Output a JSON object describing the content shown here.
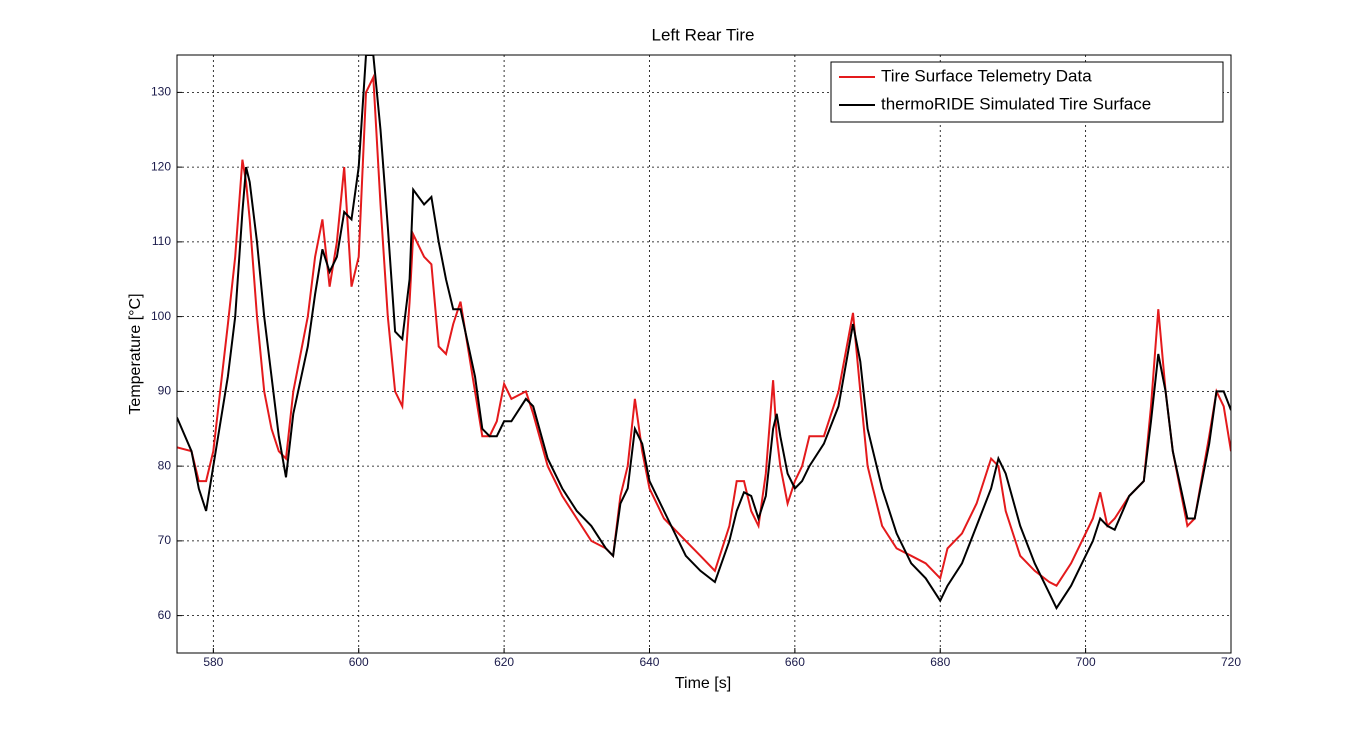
{
  "chart_data": {
    "type": "line",
    "title": "Left Rear Tire",
    "xlabel": "Time [s]",
    "ylabel": "Temperature [°C]",
    "x": [
      575,
      577,
      578,
      579,
      580,
      582,
      583,
      584,
      584.5,
      585,
      586,
      587,
      588,
      589,
      590,
      591,
      593,
      594,
      595,
      596,
      597,
      598,
      599,
      600,
      601,
      602,
      603,
      604,
      605,
      606,
      607,
      607.5,
      609,
      610,
      611,
      612,
      613,
      614,
      616,
      617,
      618,
      619,
      620,
      621,
      623,
      624,
      626,
      628,
      630,
      632,
      634,
      635,
      636,
      637,
      638,
      639,
      640,
      642,
      645,
      647,
      649,
      651,
      652,
      653,
      654,
      655,
      656,
      657,
      657.5,
      658,
      659,
      660,
      661,
      662,
      664,
      666,
      668,
      669,
      670,
      672,
      674,
      676,
      678,
      680,
      681,
      683,
      685,
      687,
      688,
      689,
      691,
      693,
      695,
      696,
      698,
      700,
      701,
      702,
      703,
      704,
      706,
      708,
      709,
      710,
      711,
      712,
      714,
      715,
      717,
      718,
      719,
      720
    ],
    "series": [
      {
        "name": "Tire Surface Telemetry Data",
        "color": "#e41a1c",
        "values": [
          82.5,
          82,
          78,
          78,
          82,
          99,
          108,
          121,
          118,
          113,
          100,
          90,
          85,
          82,
          81,
          90,
          100,
          108,
          113,
          104,
          110,
          120,
          104,
          108,
          130,
          132,
          115,
          100,
          90,
          88,
          102,
          111,
          108,
          107,
          96,
          95,
          99,
          102,
          90,
          84,
          84,
          86,
          91,
          89,
          90,
          87,
          80,
          76,
          73,
          70,
          69,
          68,
          76,
          80,
          89,
          82,
          77,
          73,
          70,
          68,
          66,
          72,
          78,
          78,
          74,
          72,
          79,
          91.5,
          84,
          80,
          75,
          78,
          80,
          84,
          84,
          90,
          100.5,
          90,
          80,
          72,
          69,
          68,
          67,
          65,
          69,
          71,
          75,
          81,
          80,
          74,
          68,
          66,
          64.5,
          64,
          67,
          71,
          73,
          76.5,
          72,
          73,
          76,
          78,
          88,
          101,
          90,
          82,
          72,
          73,
          84,
          90,
          88,
          82
        ]
      },
      {
        "name": "thermoRIDE Simulated Tire Surface",
        "color": "#000000",
        "values": [
          86.5,
          82,
          77,
          74,
          80,
          92,
          100,
          114,
          120,
          118,
          110,
          100,
          92,
          84,
          78.5,
          87,
          96,
          103,
          109,
          106,
          108,
          114,
          113,
          120,
          135,
          135,
          125,
          112,
          98,
          97,
          105,
          117,
          115,
          116,
          110,
          105,
          101,
          101,
          92,
          85,
          84,
          84,
          86,
          86,
          89,
          88,
          81,
          77,
          74,
          72,
          69,
          68,
          75,
          77,
          85,
          83,
          78,
          74,
          68,
          66,
          64.5,
          70,
          74,
          76.5,
          76,
          73,
          76,
          85,
          87,
          84,
          79,
          77,
          78,
          80,
          83,
          88,
          99,
          94,
          85,
          77,
          71,
          67,
          65,
          62,
          64,
          67,
          72,
          77,
          81,
          79,
          72,
          67,
          63,
          61,
          64,
          68,
          70,
          73,
          72,
          71.5,
          76,
          78,
          86,
          95,
          90,
          82,
          73,
          73,
          83,
          90,
          90,
          87.5
        ]
      }
    ],
    "xlim": [
      575,
      720
    ],
    "ylim": [
      55,
      135
    ],
    "xticks": [
      580,
      600,
      620,
      640,
      660,
      680,
      700,
      720
    ],
    "yticks": [
      60,
      70,
      80,
      90,
      100,
      110,
      120,
      130
    ],
    "grid": true,
    "legend": "upper right"
  }
}
